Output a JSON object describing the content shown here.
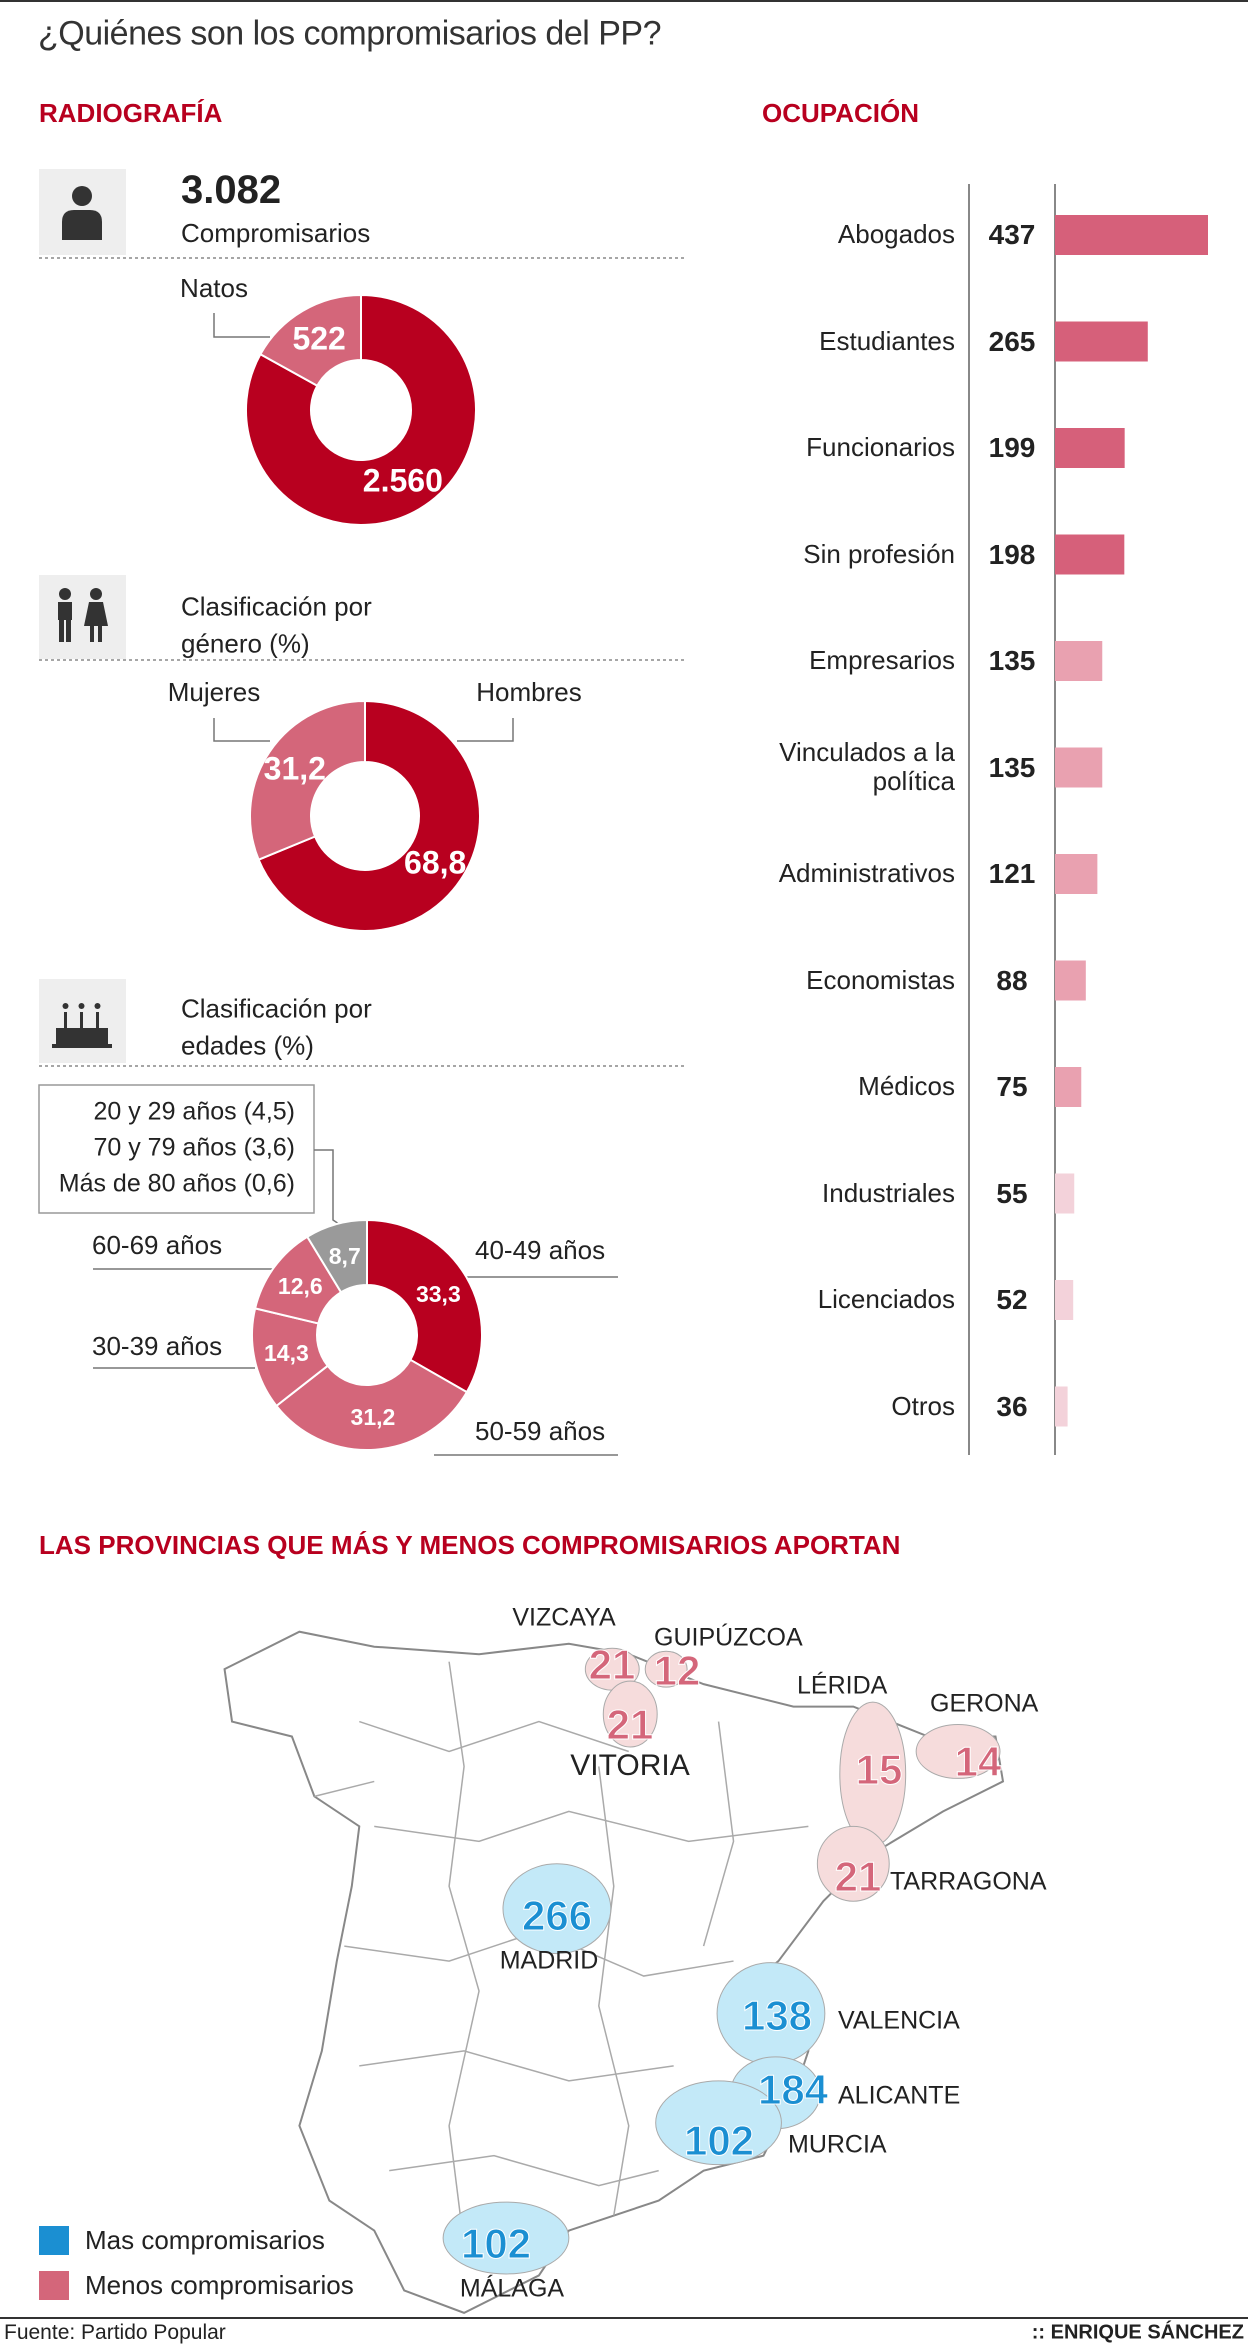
{
  "title": "¿Quiénes son los compromisarios del PP?",
  "headings": {
    "left": "RADIOGRAFÍA",
    "right": "OCUPACIÓN",
    "map": "LAS PROVINCIAS QUE MÁS Y MENOS COMPROMISARIOS APORTAN"
  },
  "chart_data": [
    {
      "type": "donut",
      "total": {
        "value": 3082,
        "label": "3.082"
      },
      "subtitle": "Compromisarios",
      "categories": [
        null,
        "Natos"
      ],
      "values": [
        2560,
        522
      ],
      "value_labels": [
        "2.560",
        "522"
      ],
      "colors": [
        "#b8001f",
        "#d4667a"
      ]
    },
    {
      "type": "donut",
      "subtitle": "Clasificación por género (%)",
      "categories": [
        "Hombres",
        "Mujeres"
      ],
      "values": [
        68.8,
        31.2
      ],
      "value_labels": [
        "68,8",
        "31,2"
      ],
      "colors": [
        "#b8001f",
        "#d4667a"
      ]
    },
    {
      "type": "donut",
      "subtitle": "Clasificación por edades (%)",
      "categories": [
        "40-49 años",
        "50-59 años",
        "30-39 años",
        "60-69 años",
        null
      ],
      "values": [
        33.3,
        31.2,
        14.3,
        12.6,
        8.7
      ],
      "value_labels": [
        "33,3",
        "31,2",
        "14,3",
        "12,6",
        "8,7"
      ],
      "colors": [
        "#b8001f",
        "#d4667a",
        "#d4667a",
        "#d4667a",
        "#9a9a9a"
      ],
      "breakdown": {
        "labels": [
          "20 y 29 años (4,5)",
          "70 y 79 años (3,6)",
          "Más de 80 años (0,6)"
        ],
        "values": [
          4.5,
          3.6,
          0.6
        ]
      }
    },
    {
      "type": "bar",
      "orientation": "horizontal",
      "categories": [
        "Abogados",
        "Estudiantes",
        "Funcionarios",
        "Sin profesión",
        "Empresarios",
        "Vinculados a la política",
        "Administrativos",
        "Economistas",
        "Médicos",
        "Industriales",
        "Licenciados",
        "Otros"
      ],
      "values": [
        437,
        265,
        199,
        198,
        135,
        135,
        121,
        88,
        75,
        55,
        52,
        36
      ],
      "colors": [
        "#d6607a",
        "#d6607a",
        "#d6607a",
        "#d6607a",
        "#e9a1b0",
        "#e9a1b0",
        "#e9a1b0",
        "#e9a1b0",
        "#e9a1b0",
        "#f3d2da",
        "#f3d2da",
        "#f3d2da"
      ]
    }
  ],
  "map": {
    "series": [
      {
        "name": "Mas compromisarios",
        "color": "#1b8fd2",
        "regions": [
          "MADRID",
          "VALENCIA",
          "ALICANTE",
          "MURCIA",
          "MÁLAGA"
        ],
        "values": [
          266,
          138,
          184,
          102,
          102
        ]
      },
      {
        "name": "Menos compromisarios",
        "color": "#d4667a",
        "regions": [
          "VIZCAYA",
          "GUIPÚZCOA",
          "VITORIA",
          "LÉRIDA",
          "GERONA",
          "TARRAGONA"
        ],
        "values": [
          21,
          12,
          21,
          15,
          14,
          21
        ]
      }
    ]
  },
  "source": "Fuente: Partido Popular",
  "credit": ":: ENRIQUE SÁNCHEZ"
}
